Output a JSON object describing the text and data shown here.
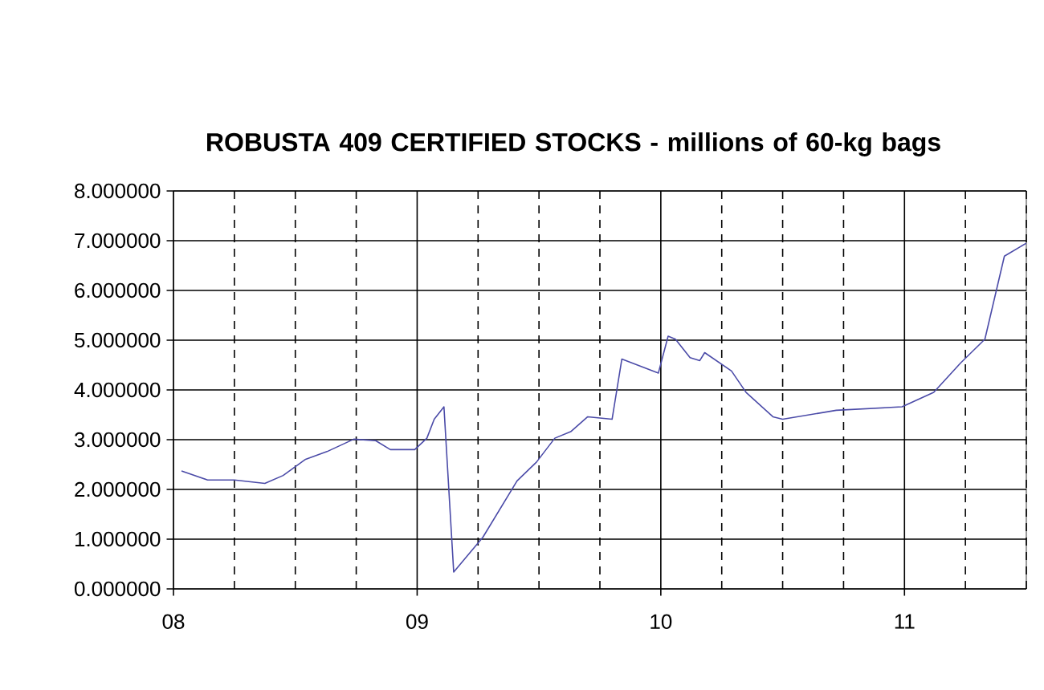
{
  "chart_data": {
    "type": "line",
    "title": "ROBUSTA 409 CERTIFIED STOCKS - millions of 60-kg bags",
    "x": [
      2008.033,
      2008.14,
      2008.25,
      2008.375,
      2008.45,
      2008.54,
      2008.63,
      2008.74,
      2008.83,
      2008.89,
      2008.99,
      2009.04,
      2009.07,
      2009.11,
      2009.15,
      2009.27,
      2009.41,
      2009.49,
      2009.565,
      2009.63,
      2009.7,
      2009.8,
      2009.84,
      2009.99,
      2010.03,
      2010.06,
      2010.12,
      2010.16,
      2010.18,
      2010.29,
      2010.35,
      2010.46,
      2010.5,
      2010.72,
      2010.99,
      2011.12,
      2011.23,
      2011.33,
      2011.41,
      2011.5
    ],
    "series": [
      {
        "color": "#4b4ba8",
        "values": [
          2.37,
          2.19,
          2.19,
          2.12,
          2.28,
          2.6,
          2.76,
          3.01,
          2.98,
          2.8,
          2.8,
          3.03,
          3.41,
          3.66,
          0.34,
          1.04,
          2.17,
          2.55,
          3.03,
          3.16,
          3.46,
          3.41,
          4.62,
          4.34,
          5.08,
          5.02,
          4.65,
          4.59,
          4.75,
          4.38,
          3.95,
          3.46,
          3.41,
          3.59,
          3.66,
          3.95,
          4.54,
          5.02,
          6.69,
          6.95
        ]
      }
    ],
    "xlim": [
      2008,
      2011.5
    ],
    "xticks": [
      {
        "value": 2008,
        "label": "08"
      },
      {
        "value": 2008.25,
        "label": null
      },
      {
        "value": 2008.5,
        "label": null
      },
      {
        "value": 2008.75,
        "label": null
      },
      {
        "value": 2009,
        "label": "09"
      },
      {
        "value": 2009.25,
        "label": null
      },
      {
        "value": 2009.5,
        "label": null
      },
      {
        "value": 2009.75,
        "label": null
      },
      {
        "value": 2010,
        "label": "10"
      },
      {
        "value": 2010.25,
        "label": null
      },
      {
        "value": 2010.5,
        "label": null
      },
      {
        "value": 2010.75,
        "label": null
      },
      {
        "value": 2011,
        "label": "11"
      },
      {
        "value": 2011.25,
        "label": null
      },
      {
        "value": 2011.5,
        "label": null
      }
    ],
    "ylim": [
      0,
      8
    ],
    "yticks": [
      {
        "value": 0,
        "label": "0.000000"
      },
      {
        "value": 1,
        "label": "1.000000"
      },
      {
        "value": 2,
        "label": "2.000000"
      },
      {
        "value": 3,
        "label": "3.000000"
      },
      {
        "value": 4,
        "label": "4.000000"
      },
      {
        "value": 5,
        "label": "5.000000"
      },
      {
        "value": 6,
        "label": "6.000000"
      },
      {
        "value": 7,
        "label": "7.000000"
      },
      {
        "value": 8,
        "label": "8.000000"
      }
    ],
    "grid": true,
    "marker": "none",
    "line_style": "solid"
  }
}
